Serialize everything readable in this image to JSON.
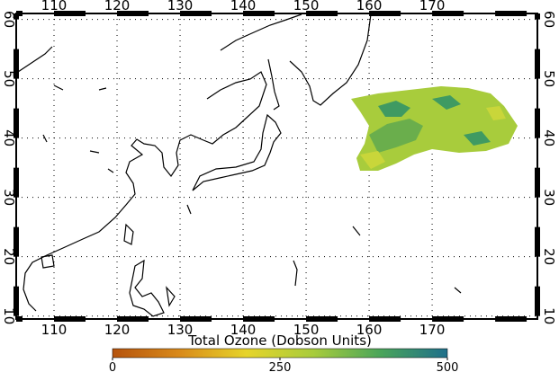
{
  "map": {
    "lon_range": [
      104,
      186.7
    ],
    "lat_range": [
      9.5,
      61
    ],
    "lon_ticks": [
      110,
      120,
      130,
      140,
      150,
      160,
      170
    ],
    "lat_ticks": [
      10,
      20,
      30,
      40,
      50,
      60
    ]
  },
  "colorbar": {
    "title": "Total Ozone (Dobson Units)",
    "range": [
      0,
      500
    ],
    "ticks": [
      0,
      250,
      500
    ]
  }
}
